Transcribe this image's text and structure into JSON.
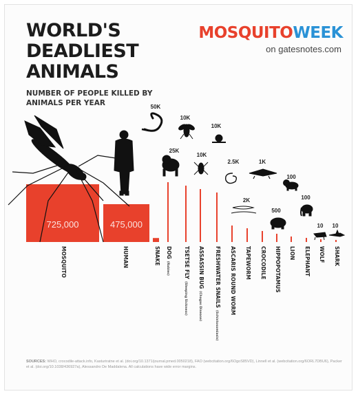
{
  "header": {
    "title_lines": [
      "WORLD'S",
      "DEADLIEST",
      "ANIMALS"
    ],
    "subtitle": "NUMBER OF PEOPLE KILLED BY ANIMALS PER YEAR"
  },
  "logo": {
    "part1": "MOSQUITO",
    "part2": "WEEK",
    "url": "on gatesnotes.com"
  },
  "colors": {
    "bar": "#e8412c",
    "logo_red": "#e8412c",
    "logo_blue": "#2a92d6",
    "text": "#1c1c1c"
  },
  "chart_data": {
    "type": "bar",
    "title": "WORLD'S DEADLIEST ANIMALS",
    "subtitle": "NUMBER OF PEOPLE KILLED BY ANIMALS PER YEAR",
    "categories": [
      "MOSQUITO",
      "HUMAN",
      "SNAKE",
      "DOG",
      "TSETSE FLY",
      "ASSASSIN BUG",
      "FRESHWATER SNAILS",
      "ASCARIS ROUND WORM",
      "TAPEWORM",
      "CROCODILE",
      "HIPPOPOTAMUS",
      "LION",
      "ELEPHANT",
      "WOLF",
      "SHARK"
    ],
    "category_notes": [
      "",
      "",
      "",
      "(Rabies)",
      "(Sleeping Sickness)",
      "(Chagas Disease)",
      "(Schistosomiasis)",
      "",
      "",
      "",
      "",
      "",
      "",
      "",
      ""
    ],
    "values": [
      725000,
      475000,
      50000,
      25000,
      10000,
      10000,
      10000,
      2500,
      2000,
      1000,
      500,
      100,
      100,
      10,
      10
    ],
    "value_labels": [
      "725,000",
      "475,000",
      "50K",
      "25K",
      "10K",
      "10K",
      "10K",
      "2.5K",
      "2K",
      "1K",
      "500",
      "100",
      "100",
      "10",
      "10"
    ],
    "icons": [
      "mosquito-icon",
      "human-icon",
      "snake-icon",
      "dog-icon",
      "tsetse-fly-icon",
      "assassin-bug-icon",
      "snail-icon",
      "roundworm-icon",
      "tapeworm-icon",
      "crocodile-icon",
      "hippopotamus-icon",
      "lion-icon",
      "elephant-icon",
      "wolf-icon",
      "shark-icon"
    ],
    "xlabel": "",
    "ylabel": ""
  },
  "sources": {
    "label": "SOURCES:",
    "text": "WHO, crocodile-attack.info, Kasturiratne et al. (doi.org/10.1371/journal.pmed.0050218), FAO (webcitation.org/6OgoS85VD), Linnell et al. (webcitation.org/6ORL7DBU6), Packer et al. (doi.org/10.1038/436927a), Alessandro De Maddalena. All calculations have wide error margins."
  }
}
